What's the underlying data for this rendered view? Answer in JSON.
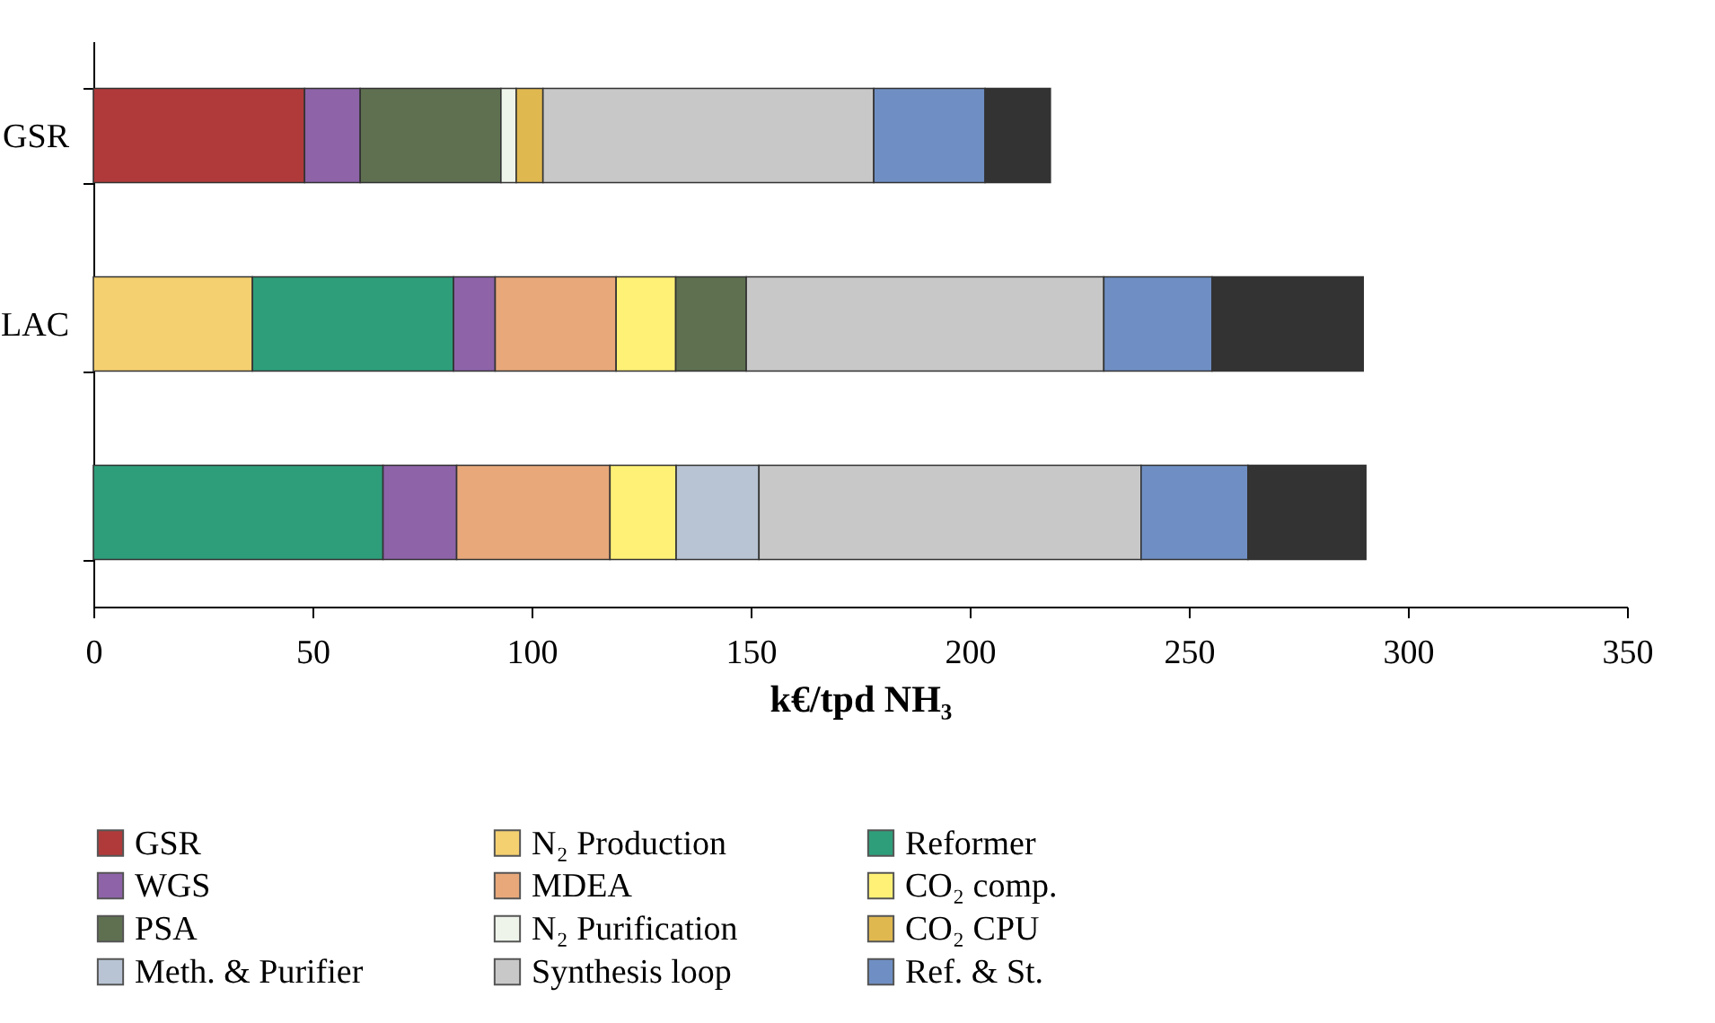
{
  "chart_data": {
    "type": "bar",
    "orientation": "horizontal",
    "stacked": true,
    "categories": [
      "GSR",
      "LAC",
      null
    ],
    "xlabel": "k€/tpd NH₃",
    "xlim": [
      0,
      350
    ],
    "xticks": [
      0,
      50,
      100,
      150,
      200,
      250,
      300,
      350
    ],
    "grid": false,
    "legend": "bottom",
    "series": [
      {
        "name": "GSR",
        "color": "#b03a3a",
        "values": [
          48.2,
          null,
          null
        ]
      },
      {
        "name": "N₂ Production",
        "color": "#f5d070",
        "values": [
          null,
          36.3,
          null
        ]
      },
      {
        "name": "Reformer",
        "color": "#2e9e7a",
        "values": [
          null,
          45.9,
          66.1
        ]
      },
      {
        "name": "WGS",
        "color": "#8e63a8",
        "values": [
          12.7,
          9.5,
          16.8
        ]
      },
      {
        "name": "MDEA",
        "color": "#e8a87a",
        "values": [
          null,
          27.6,
          35
        ]
      },
      {
        "name": "CO₂ comp.",
        "color": "#fff176",
        "values": [
          null,
          13.6,
          15.1
        ]
      },
      {
        "name": "PSA",
        "color": "#5e7050",
        "values": [
          32.1,
          16.1,
          null
        ]
      },
      {
        "name": "N₂ Purification",
        "color": "#eef4ea",
        "values": [
          3.5,
          null,
          null
        ]
      },
      {
        "name": "CO₂ CPU",
        "color": "#e0b850",
        "values": [
          6.1,
          null,
          null
        ]
      },
      {
        "name": "Meth. & Purifier",
        "color": "#b8c4d4",
        "values": [
          null,
          null,
          18.9
        ]
      },
      {
        "name": "Synthesis loop",
        "color": "#c8c8c8",
        "values": [
          75.5,
          81.6,
          87.2
        ]
      },
      {
        "name": "Ref. & St.",
        "color": "#6f8fc4",
        "values": [
          25.4,
          24.7,
          24.4
        ]
      },
      {
        "color": "#333333",
        "values": [
          14.9,
          34.5,
          26.9
        ]
      }
    ]
  }
}
